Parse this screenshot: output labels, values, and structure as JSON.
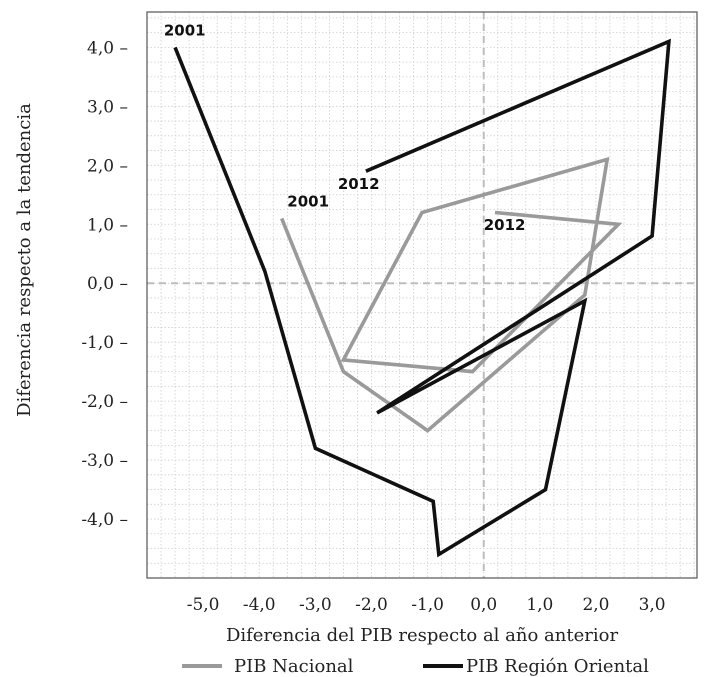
{
  "chart_data": {
    "type": "line",
    "xlabel": "Diferencia del PIB respecto al año anterior",
    "ylabel": "Diferencia respecto a la tendencia",
    "xlim": [
      -6.0,
      3.8
    ],
    "ylim": [
      -5.0,
      4.6
    ],
    "x_ticks": [
      -5,
      -4,
      -3,
      -2,
      -1,
      0,
      1,
      2,
      3
    ],
    "x_tick_labels": [
      "-5,0",
      "-4,0",
      "-3,0",
      "-2,0",
      "-1,0",
      "0,0",
      "1,0",
      "2,0",
      "3,0"
    ],
    "y_ticks": [
      4,
      3,
      2,
      1,
      0,
      -1,
      -2,
      -3,
      -4
    ],
    "y_tick_labels": [
      "4,0 –",
      "3,0 –",
      "2,0 –",
      "1,0 –",
      "0,0 –",
      "-1,0 –",
      "-2,0 –",
      "-3,0 –",
      "-4,0 –"
    ],
    "grid": true,
    "zero_lines": true,
    "legend_position": "bottom",
    "series": [
      {
        "name": "PIB Nacional",
        "color": "#9a9a9a",
        "points": [
          [
            -3.6,
            1.1
          ],
          [
            -2.5,
            -1.5
          ],
          [
            -1.0,
            -2.5
          ],
          [
            1.8,
            -0.2
          ],
          [
            2.2,
            2.1
          ],
          [
            -1.1,
            1.2
          ],
          [
            -2.5,
            -1.3
          ],
          [
            -0.2,
            -1.5
          ],
          [
            2.4,
            1.0
          ],
          [
            0.2,
            1.2
          ]
        ]
      },
      {
        "name": "PIB Región Oriental",
        "color": "#111111",
        "points": [
          [
            -5.5,
            4.0
          ],
          [
            -3.9,
            0.2
          ],
          [
            -3.0,
            -2.8
          ],
          [
            -0.9,
            -3.7
          ],
          [
            -0.8,
            -4.6
          ],
          [
            1.1,
            -3.5
          ],
          [
            1.8,
            -0.3
          ],
          [
            -1.9,
            -2.2
          ],
          [
            3.0,
            0.8
          ],
          [
            3.3,
            4.1
          ],
          [
            -2.1,
            1.9
          ]
        ]
      }
    ],
    "annotations": [
      {
        "text": "2001",
        "x": -5.7,
        "y": 4.2
      },
      {
        "text": "2012",
        "x": -2.6,
        "y": 1.6
      },
      {
        "text": "2001",
        "x": -3.5,
        "y": 1.3
      },
      {
        "text": "2012",
        "x": 0.0,
        "y": 0.9
      }
    ]
  }
}
